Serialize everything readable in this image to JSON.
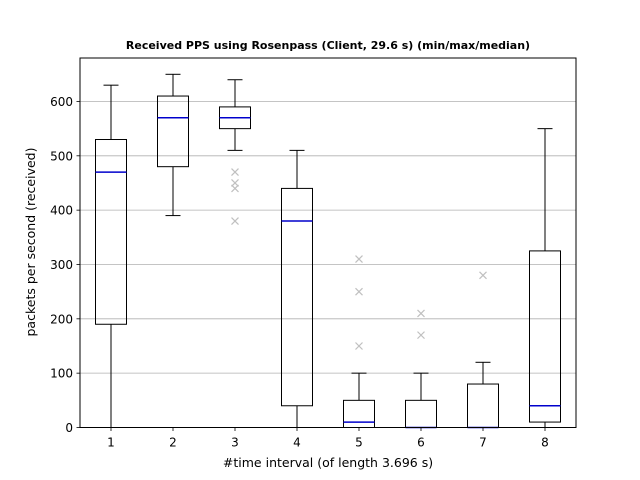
{
  "chart_data": {
    "type": "box",
    "title": "Received PPS using Rosenpass (Client, 29.6 s) (min/max/median)",
    "xlabel": "#time interval (of length 3.696 s)",
    "ylabel": "packets per second (received)",
    "ylim": [
      0,
      680
    ],
    "yticks": [
      0,
      100,
      200,
      300,
      400,
      500,
      600
    ],
    "grid": "horizontal",
    "colors": {
      "box": "#000000",
      "median": "#0000cc",
      "grid": "#b0b0b0",
      "outlier": "#c0c0c0"
    },
    "categories": [
      "1",
      "2",
      "3",
      "4",
      "5",
      "6",
      "7",
      "8"
    ],
    "boxes": [
      {
        "x": "1",
        "whisker_low": 0,
        "q1": 190,
        "median": 470,
        "q3": 530,
        "whisker_high": 630,
        "outliers": []
      },
      {
        "x": "2",
        "whisker_low": 390,
        "q1": 480,
        "median": 570,
        "q3": 610,
        "whisker_high": 650,
        "outliers": []
      },
      {
        "x": "3",
        "whisker_low": 510,
        "q1": 550,
        "median": 570,
        "q3": 590,
        "whisker_high": 640,
        "outliers": [
          470,
          450,
          440,
          380
        ]
      },
      {
        "x": "4",
        "whisker_low": 0,
        "q1": 40,
        "median": 380,
        "q3": 440,
        "whisker_high": 510,
        "outliers": []
      },
      {
        "x": "5",
        "whisker_low": 0,
        "q1": 0,
        "median": 10,
        "q3": 50,
        "whisker_high": 100,
        "outliers": [
          310,
          250,
          150
        ]
      },
      {
        "x": "6",
        "whisker_low": 0,
        "q1": 0,
        "median": 0,
        "q3": 50,
        "whisker_high": 100,
        "outliers": [
          210,
          170
        ]
      },
      {
        "x": "7",
        "whisker_low": 0,
        "q1": 0,
        "median": 0,
        "q3": 80,
        "whisker_high": 120,
        "outliers": [
          280
        ]
      },
      {
        "x": "8",
        "whisker_low": 0,
        "q1": 10,
        "median": 40,
        "q3": 325,
        "whisker_high": 550,
        "outliers": []
      }
    ]
  }
}
